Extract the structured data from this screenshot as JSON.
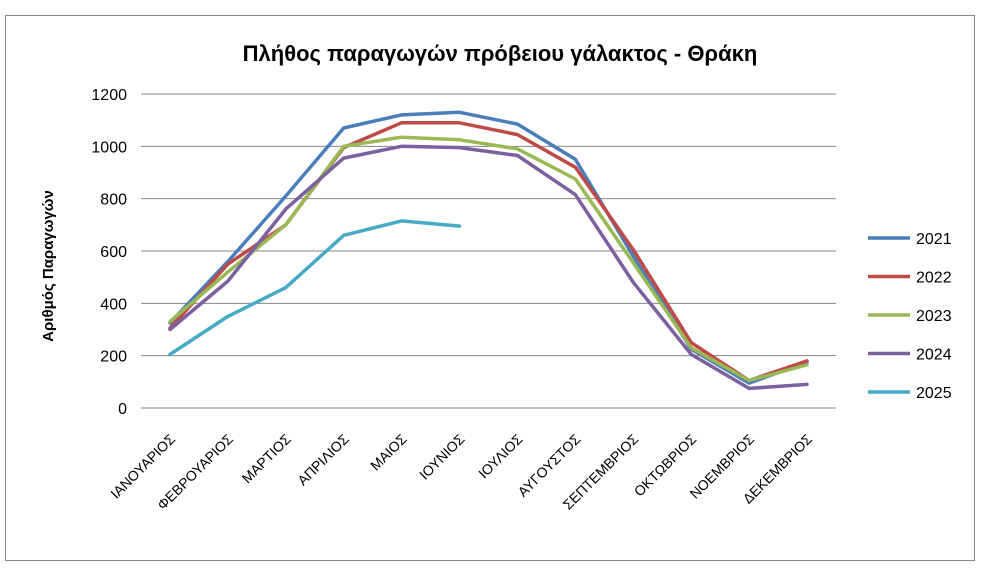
{
  "chart_data": {
    "type": "line",
    "title": "Πλήθος παραγωγών πρόβειου γάλακτος - Θράκη",
    "xlabel": "",
    "ylabel": "Αριθμός Παραγωγών",
    "ylim": [
      0,
      1200
    ],
    "yticks": [
      0,
      200,
      400,
      600,
      800,
      1000,
      1200
    ],
    "grid": "horizontal",
    "legend_position": "right",
    "categories": [
      "ΙΑΝΟΥΑΡΙΟΣ",
      "ΦΕΒΡΟΥΑΡΙΟΣ",
      "ΜΑΡΤΙΟΣ",
      "ΑΠΡΙΛΙΟΣ",
      "ΜΑΙΟΣ",
      "ΙΟΥΝΙΟΣ",
      "ΙΟΥΛΙΟΣ",
      "ΑΥΓΟΥΣΤΟΣ",
      "ΣΕΠΤΕΜΒΡΙΟΣ",
      "ΟΚΤΩΒΡΙΟΣ",
      "ΝΟΕΜΒΡΙΟΣ",
      "ΔΕΚΕΜΒΡΙΟΣ"
    ],
    "series": [
      {
        "name": "2021",
        "color": "#4a7ebb",
        "values": [
          325,
          560,
          810,
          1070,
          1120,
          1130,
          1085,
          950,
          580,
          225,
          95,
          175
        ]
      },
      {
        "name": "2022",
        "color": "#be4b48",
        "values": [
          305,
          550,
          700,
          995,
          1090,
          1090,
          1045,
          920,
          605,
          250,
          105,
          180
        ]
      },
      {
        "name": "2023",
        "color": "#98b954",
        "values": [
          330,
          520,
          700,
          1000,
          1035,
          1025,
          990,
          875,
          555,
          230,
          105,
          165
        ]
      },
      {
        "name": "2024",
        "color": "#7d60a0",
        "values": [
          300,
          485,
          760,
          955,
          1000,
          995,
          965,
          815,
          480,
          205,
          75,
          90
        ]
      },
      {
        "name": "2025",
        "color": "#46aac5",
        "values": [
          205,
          350,
          460,
          660,
          715,
          695,
          null,
          null,
          null,
          null,
          null,
          null
        ]
      }
    ]
  }
}
